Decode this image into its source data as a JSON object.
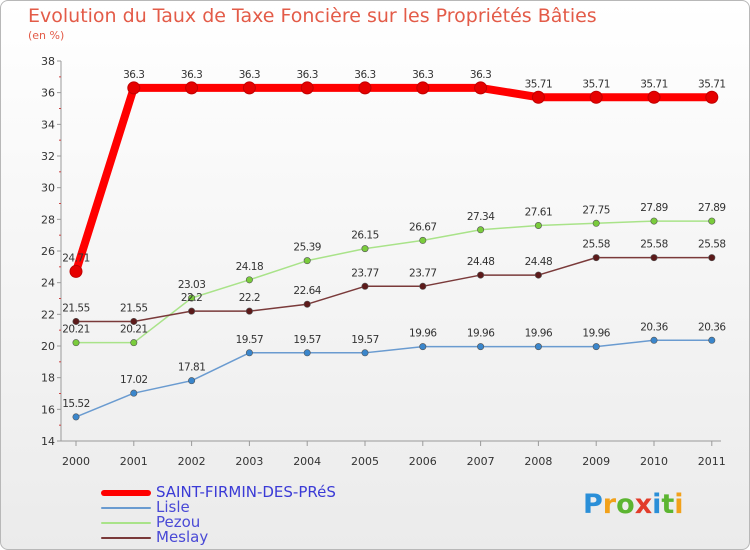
{
  "chart_data": {
    "type": "line",
    "title": "Evolution du Taux de Taxe Foncière sur les Propriétés Bâties",
    "ylabel": "(en %)",
    "xlabel": "",
    "ylim": [
      14,
      38
    ],
    "yticks": [
      14,
      16,
      18,
      20,
      22,
      24,
      26,
      28,
      30,
      32,
      34,
      36,
      38
    ],
    "categories": [
      "2000",
      "2001",
      "2002",
      "2003",
      "2004",
      "2005",
      "2006",
      "2007",
      "2008",
      "2009",
      "2010",
      "2011"
    ],
    "series": [
      {
        "name": "SAINT-FIRMIN-DES-PRéS",
        "color": "#ff0000",
        "marker": "#e60000",
        "width": 8,
        "values": [
          24.71,
          36.3,
          36.3,
          36.3,
          36.3,
          36.3,
          36.3,
          36.3,
          35.71,
          35.71,
          35.71,
          35.71
        ],
        "labels": [
          "24.71",
          "36.3",
          "36.3",
          "36.3",
          "36.3",
          "36.3",
          "36.3",
          "36.3",
          "35.71",
          "35.71",
          "35.71",
          "35.71"
        ]
      },
      {
        "name": "Lisle",
        "color": "#6a9bd0",
        "marker": "#3a86cc",
        "width": 1.5,
        "values": [
          15.52,
          17.02,
          17.81,
          19.57,
          19.57,
          19.57,
          19.96,
          19.96,
          19.96,
          19.96,
          20.36,
          20.36
        ],
        "labels": [
          "15.52",
          "17.02",
          "17.81",
          "19.57",
          "19.57",
          "19.57",
          "19.96",
          "19.96",
          "19.96",
          "19.96",
          "20.36",
          "20.36"
        ]
      },
      {
        "name": "Pezou",
        "color": "#a9e389",
        "marker": "#7acc3c",
        "width": 1.5,
        "values": [
          20.21,
          20.21,
          23.03,
          24.18,
          25.39,
          26.15,
          26.67,
          27.34,
          27.61,
          27.75,
          27.89,
          27.89
        ],
        "labels": [
          "20.21",
          "20.21",
          "23.03",
          "24.18",
          "25.39",
          "26.15",
          "26.67",
          "27.34",
          "27.61",
          "27.75",
          "27.89",
          "27.89"
        ]
      },
      {
        "name": "Meslay",
        "color": "#7a3a3a",
        "marker": "#5c1a1a",
        "width": 1.5,
        "values": [
          21.55,
          21.55,
          22.2,
          22.2,
          22.64,
          23.77,
          23.77,
          24.48,
          24.48,
          25.58,
          25.58,
          25.58
        ],
        "labels": [
          "21.55",
          "21.55",
          "22.2",
          "22.2",
          "22.64",
          "23.77",
          "23.77",
          "24.48",
          "24.48",
          "25.58",
          "25.58",
          "25.58"
        ]
      }
    ],
    "grid": false,
    "legend_position": "bottom-left"
  },
  "logo": [
    "P",
    "r",
    "o",
    "x",
    "i",
    "t",
    "i"
  ]
}
